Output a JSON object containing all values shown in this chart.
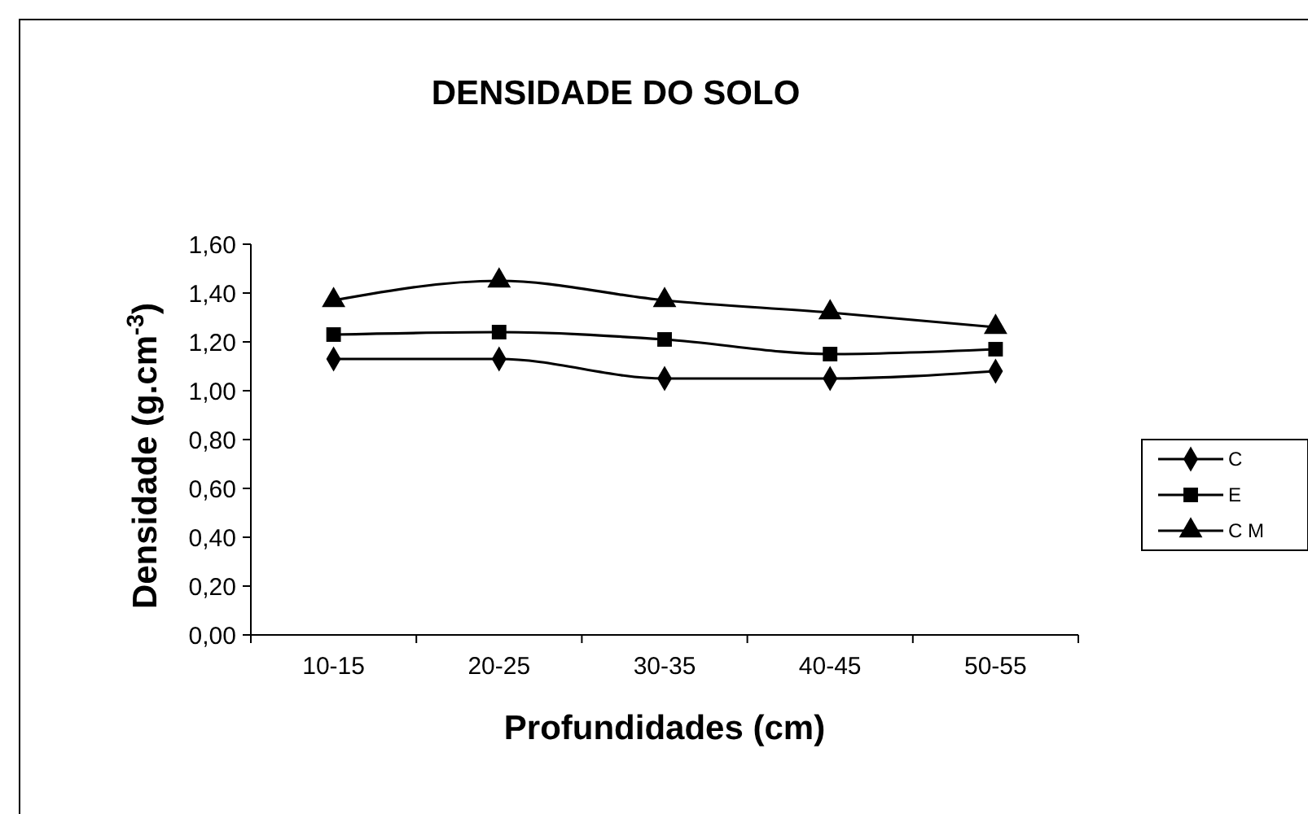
{
  "chart_data": {
    "type": "line",
    "title": "DENSIDADE DO SOLO",
    "xlabel": "Profundidades (cm)",
    "ylabel": "Densidade (g.cm$^{-3}$)",
    "categories": [
      "10-15",
      "20-25",
      "30-35",
      "40-45",
      "50-55"
    ],
    "series": [
      {
        "name": "C",
        "color": "#000000",
        "marker": "diamond",
        "values": [
          1.13,
          1.13,
          1.05,
          1.05,
          1.08
        ]
      },
      {
        "name": "E",
        "color": "#000000",
        "marker": "square",
        "values": [
          1.23,
          1.24,
          1.21,
          1.15,
          1.17
        ]
      },
      {
        "name": "C M",
        "color": "#000000",
        "marker": "triangle",
        "values": [
          1.37,
          1.45,
          1.37,
          1.32,
          1.26
        ]
      }
    ],
    "ylim": [
      0,
      1.6
    ],
    "yticks": [
      {
        "value": 0,
        "label": "0,00"
      },
      {
        "value": 0.2,
        "label": "0,20"
      },
      {
        "value": 0.4,
        "label": "0,40"
      },
      {
        "value": 0.6,
        "label": "0,60"
      },
      {
        "value": 0.8,
        "label": "0,80"
      },
      {
        "value": 1,
        "label": "1,00"
      },
      {
        "value": 1.2,
        "label": "1,20"
      },
      {
        "value": 1.4,
        "label": "1,40"
      },
      {
        "value": 1.6,
        "label": "1,60"
      }
    ],
    "grid": false,
    "legend": "right",
    "line_style": "solid"
  }
}
